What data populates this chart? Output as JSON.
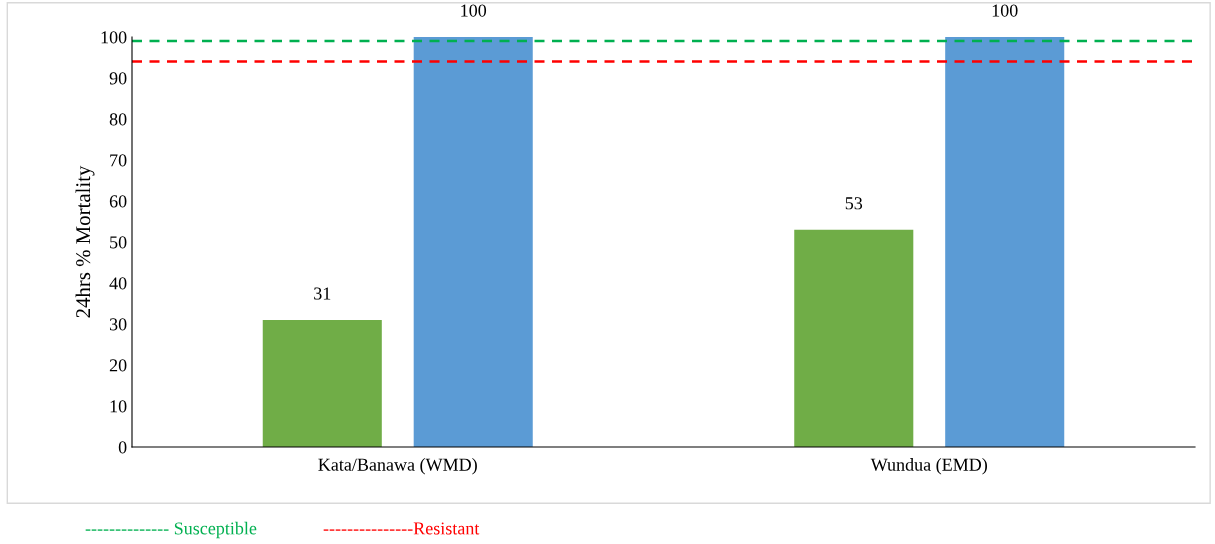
{
  "chart_data": {
    "type": "bar",
    "ylabel": "24hrs % Mortality",
    "categories": [
      "Kata/Banawa (WMD)",
      "Wundua (EMD)"
    ],
    "series": [
      {
        "color": "#70ad47",
        "values": [
          31,
          53
        ]
      },
      {
        "color": "#5b9bd5",
        "values": [
          100,
          100
        ]
      }
    ],
    "ylim": [
      0,
      100
    ],
    "yticks": [
      0,
      10,
      20,
      30,
      40,
      50,
      60,
      70,
      80,
      90,
      100
    ],
    "data_labels": true,
    "grid": false,
    "legend": false,
    "ref_lines": [
      {
        "axis": "y",
        "value": 99,
        "label": "-------------- Susceptible",
        "color": "#00b050",
        "line_style": "dashed"
      },
      {
        "axis": "y",
        "value": 94,
        "label": "---------------Resistant",
        "color": "#ff0000",
        "line_style": "dashed"
      }
    ]
  }
}
